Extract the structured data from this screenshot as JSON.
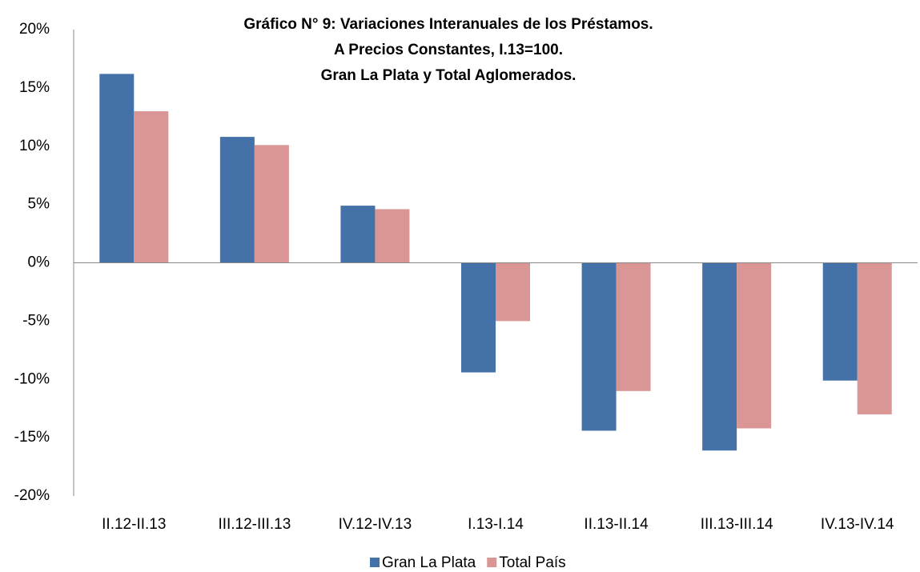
{
  "chart_data": {
    "type": "bar",
    "title": [
      "Gráfico N° 9: Variaciones Interanuales de los Préstamos.",
      "A Precios Constantes, I.13=100.",
      "Gran La Plata y Total Aglomerados."
    ],
    "categories": [
      "II.12-II.13",
      "III.12-III.13",
      "IV.12-IV.13",
      "I.13-I.14",
      "II.13-II.14",
      "III.13-III.14",
      "IV.13-IV.14"
    ],
    "series": [
      {
        "name": "Gran La Plata",
        "color": "#4472a8",
        "values": [
          16.2,
          10.8,
          4.9,
          -9.4,
          -14.4,
          -16.1,
          -10.1
        ]
      },
      {
        "name": "Total País",
        "color": "#d99694",
        "values": [
          13.0,
          10.1,
          4.6,
          -5.0,
          -11.0,
          -14.2,
          -13.0
        ]
      }
    ],
    "ylim": [
      -20,
      20
    ],
    "yticks": [
      {
        "value": -20,
        "label": "-20%"
      },
      {
        "value": -15,
        "label": "-15%"
      },
      {
        "value": -10,
        "label": "-10%"
      },
      {
        "value": -5,
        "label": "-5%"
      },
      {
        "value": 0,
        "label": "0%"
      },
      {
        "value": 5,
        "label": "5%"
      },
      {
        "value": 10,
        "label": "10%"
      },
      {
        "value": 15,
        "label": "15%"
      },
      {
        "value": 20,
        "label": "20%"
      }
    ],
    "grid": false,
    "legend": "bottom"
  }
}
